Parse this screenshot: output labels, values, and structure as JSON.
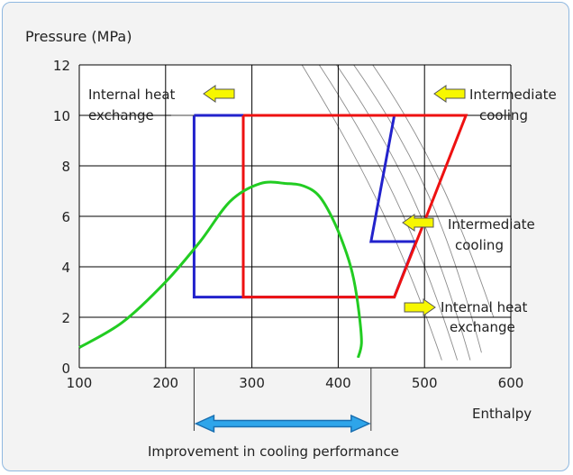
{
  "chart_data": {
    "type": "line",
    "ylabel": "Pressure (MPa)",
    "xlabel": "Enthalpy",
    "xlim": [
      100,
      600
    ],
    "ylim": [
      0,
      12
    ],
    "x_ticks": [
      100,
      200,
      300,
      400,
      500,
      600
    ],
    "y_ticks": [
      0,
      2,
      4,
      6,
      8,
      10,
      12
    ],
    "grid": true,
    "series": [
      {
        "color": "#2222cc",
        "points": [
          [
            233,
            10
          ],
          [
            233,
            2.8
          ],
          [
            465,
            2.8
          ],
          [
            490,
            5.0
          ],
          [
            438,
            5.0
          ],
          [
            465,
            10
          ],
          [
            233,
            10
          ]
        ]
      },
      {
        "color": "#ee1111",
        "points": [
          [
            290,
            10
          ],
          [
            290,
            2.8
          ],
          [
            465,
            2.8
          ],
          [
            500,
            5.8
          ],
          [
            548,
            10
          ],
          [
            290,
            10
          ]
        ]
      },
      {
        "color": "#22cc22",
        "points": [
          [
            100,
            0.8
          ],
          [
            150,
            1.8
          ],
          [
            200,
            3.4
          ],
          [
            240,
            5.0
          ],
          [
            275,
            6.6
          ],
          [
            310,
            7.3
          ],
          [
            340,
            7.3
          ],
          [
            360,
            7.2
          ],
          [
            378,
            6.8
          ],
          [
            395,
            5.8
          ],
          [
            410,
            4.5
          ],
          [
            418,
            3.5
          ],
          [
            424,
            2.2
          ],
          [
            427,
            1.0
          ],
          [
            423,
            0.4
          ]
        ]
      }
    ],
    "background_lines_color": "#8c8c8c",
    "annotations": {
      "internal_heat_exchange_top": [
        "Internal heat",
        "exchange"
      ],
      "intermediate_cooling_top": [
        "Intermediate",
        "cooling"
      ],
      "intermediate_cooling_mid": [
        "Intermediate",
        "cooling"
      ],
      "internal_heat_exchange_bottom": [
        "Internal heat",
        "exchange"
      ],
      "improvement": "Improvement in cooling performance",
      "arrow_color": "#f7f700",
      "double_arrow_color": "#2ea5ea",
      "improvement_range": [
        233,
        438
      ]
    }
  }
}
